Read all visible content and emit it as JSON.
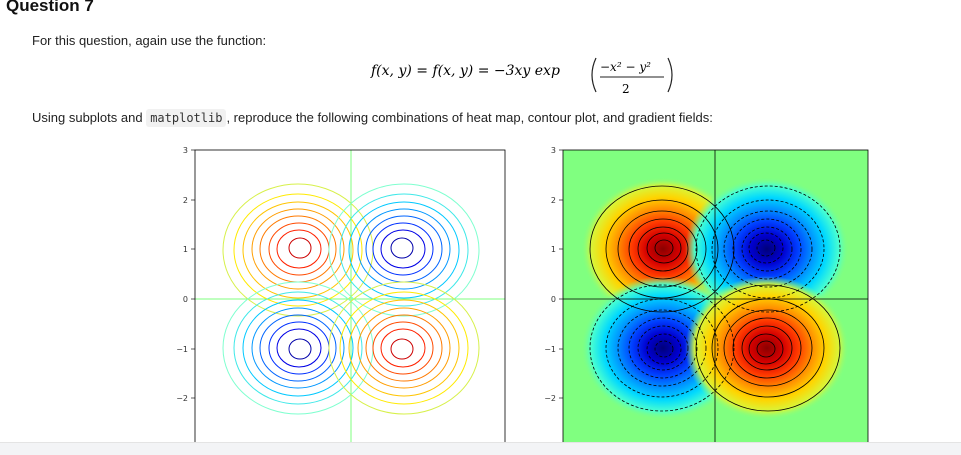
{
  "question": {
    "title": "Question 7"
  },
  "text": {
    "intro": "For this question, again use the function:",
    "instruction_before": "Using subplots and",
    "instruction_code": "matplotlib",
    "instruction_after": ", reproduce the following combinations of heat map, contour plot, and gradient fields:"
  },
  "equation": {
    "lhs": "f(x, y) = f(x, y) = −3xy exp",
    "numerator": "−x² − y²",
    "denominator": "2"
  },
  "plots": {
    "yticks": [
      "3",
      "2",
      "1",
      "0",
      "−1",
      "−2"
    ],
    "left_type": "contour lines (jet colormap)",
    "right_type": "heat map with black contour lines"
  },
  "colors": {
    "code_bg": "#f1f1f1",
    "frame": "#000000",
    "zero_line_left": "#7fff7f"
  }
}
